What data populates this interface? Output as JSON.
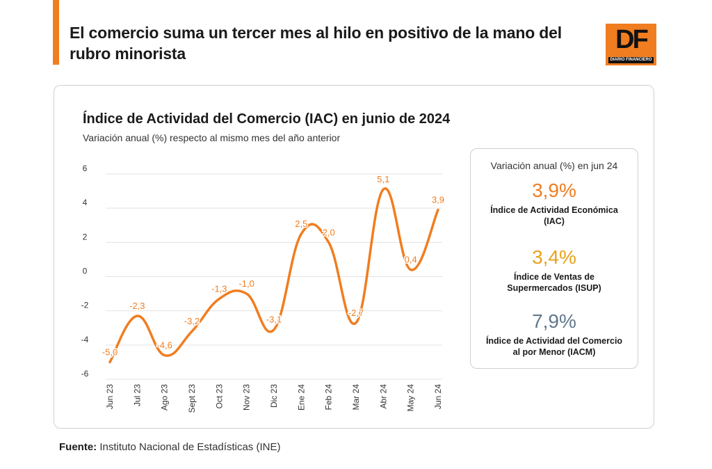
{
  "header": {
    "headline": "El comercio suma un tercer mes al hilo en positivo de la mano del rubro minorista",
    "logo_text": "DF",
    "logo_subtext": "DIARIO FINANCIERO",
    "accent_color": "#f07d20"
  },
  "chart_data": {
    "type": "line",
    "title": "Índice de Actividad del Comercio (IAC) en junio de 2024",
    "subtitle": "Variación anual (%) respecto al mismo mes del año anterior",
    "xlabel": "",
    "ylabel": "",
    "ylim": [
      -6,
      6
    ],
    "yticks": [
      "6",
      "4",
      "2",
      "0",
      "-2",
      "-4",
      "-6"
    ],
    "grid": true,
    "categories": [
      "Jun 23",
      "Jul 23",
      "Ago 23",
      "Sept 23",
      "Oct 23",
      "Nov 23",
      "Dic 23",
      "Ene 24",
      "Feb 24",
      "Mar 24",
      "Abr 24",
      "May 24",
      "Jun 24"
    ],
    "values": [
      -5.0,
      -2.3,
      -4.6,
      -3.2,
      -1.3,
      -1.0,
      -3.1,
      2.5,
      2.0,
      -2.7,
      5.1,
      0.4,
      3.9
    ],
    "data_labels": [
      "-5,0",
      "-2,3",
      "-4,6",
      "-3,2",
      "-1,3",
      "-1,0",
      "-3,1",
      "2,5",
      "2,0",
      "-2,7",
      "5,1",
      "0,4",
      "3,9"
    ],
    "line_color": "#f07d20"
  },
  "summary": {
    "header": "Variación anual (%) en jun 24",
    "metrics": [
      {
        "value": "3,9%",
        "label": "Índice de Actividad Económica (IAC)",
        "color": "#f07d20"
      },
      {
        "value": "3,4%",
        "label": "Índice de Ventas de Supermercados (ISUP)",
        "color": "#e8a21c"
      },
      {
        "value": "7,9%",
        "label": "Índice de Actividad del Comercio al por Menor (IACM)",
        "color": "#62788c"
      }
    ]
  },
  "footer": {
    "source_label": "Fuente:",
    "source_text": " Instituto Nacional de Estadísticas (INE)"
  }
}
